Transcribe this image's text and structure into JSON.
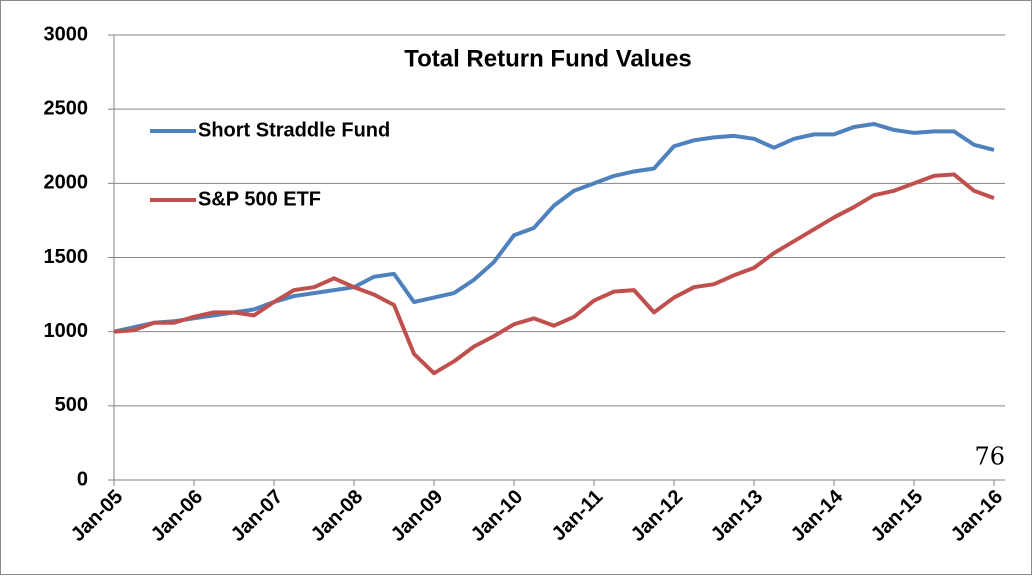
{
  "chart_data": {
    "type": "line",
    "title": "Total Return Fund Values",
    "annotation": "76",
    "categories": [
      "Jan-05",
      null,
      null,
      null,
      "Jan-06",
      null,
      null,
      null,
      "Jan-07",
      null,
      null,
      null,
      "Jan-08",
      null,
      null,
      null,
      "Jan-09",
      null,
      null,
      null,
      "Jan-10",
      null,
      null,
      null,
      "Jan-11",
      null,
      null,
      null,
      "Jan-12",
      null,
      null,
      null,
      "Jan-13",
      null,
      null,
      null,
      "Jan-14",
      null,
      null,
      null,
      "Jan-15",
      null,
      null,
      null,
      "Jan-16"
    ],
    "series": [
      {
        "name": "Short Straddle Fund",
        "color": "#4f81bd",
        "values": [
          1000,
          1030,
          1060,
          1070,
          1090,
          1110,
          1130,
          1150,
          1200,
          1240,
          1260,
          1280,
          1300,
          1370,
          1390,
          1200,
          1230,
          1260,
          1350,
          1470,
          1650,
          1700,
          1850,
          1950,
          2000,
          2050,
          2080,
          2100,
          2250,
          2290,
          2310,
          2320,
          2300,
          2240,
          2300,
          2330,
          2330,
          2380,
          2400,
          2360,
          2340,
          2350,
          2350,
          2260,
          2225
        ]
      },
      {
        "name": "S&P 500 ETF",
        "color": "#c0504d",
        "values": [
          1000,
          1010,
          1060,
          1060,
          1100,
          1130,
          1130,
          1110,
          1200,
          1280,
          1300,
          1360,
          1300,
          1250,
          1180,
          850,
          720,
          800,
          900,
          970,
          1050,
          1090,
          1040,
          1100,
          1210,
          1270,
          1280,
          1130,
          1230,
          1300,
          1320,
          1380,
          1430,
          1530,
          1610,
          1690,
          1770,
          1840,
          1920,
          1950,
          2000,
          2050,
          2060,
          1950,
          1900
        ]
      }
    ],
    "ylim": [
      0,
      3000
    ],
    "yticks": [
      0,
      500,
      1000,
      1500,
      2000,
      2500,
      3000
    ],
    "grid": true,
    "legend": "top-left"
  }
}
